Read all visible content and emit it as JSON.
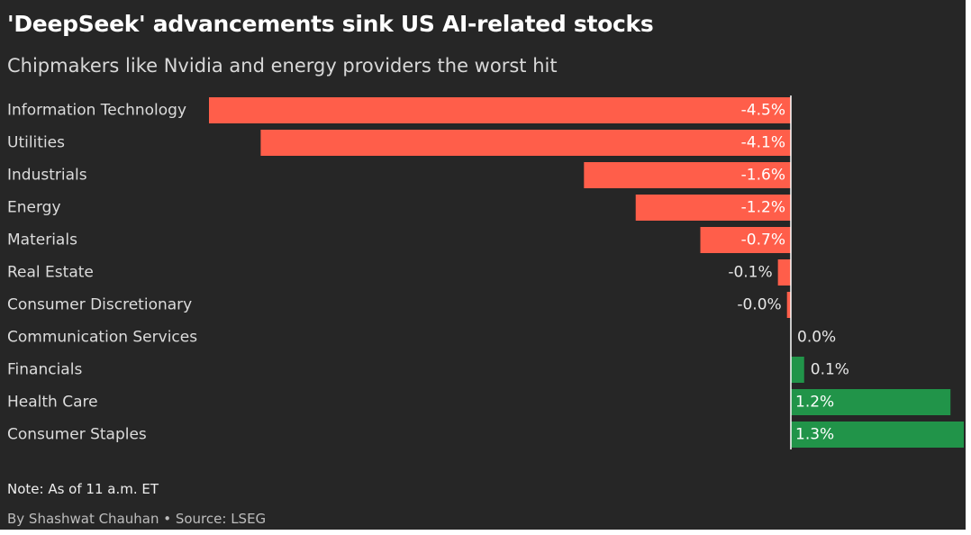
{
  "title": "'DeepSeek' advancements sink US AI-related stocks",
  "subtitle": "Chipmakers like Nvidia and energy providers the worst hit",
  "note": "Note: As of 11 a.m. ET",
  "credit": "By Shashwat Chauhan • Source: LSEG",
  "colors": {
    "background": "#262626",
    "negative": "#ff5e4a",
    "positive": "#219449",
    "axis": "#ffffff",
    "label": "#dcdcdc",
    "value_outside": "#e6e6e6"
  },
  "chart_data": {
    "type": "bar",
    "orientation": "horizontal",
    "title": "'DeepSeek' advancements sink US AI-related stocks",
    "subtitle": "Chipmakers like Nvidia and energy providers the worst hit",
    "categories": [
      "Information Technology",
      "Utilities",
      "Industrials",
      "Energy",
      "Materials",
      "Real Estate",
      "Consumer Discretionary",
      "Communication Services",
      "Financials",
      "Health Care",
      "Consumer Staples"
    ],
    "values": [
      -4.5,
      -4.1,
      -1.6,
      -1.2,
      -0.7,
      -0.1,
      -0.03,
      0.0,
      0.1,
      1.2,
      1.3
    ],
    "value_labels": [
      "-4.5%",
      "-4.1%",
      "-1.6%",
      "-1.2%",
      "-0.7%",
      "-0.1%",
      "-0.0%",
      "0.0%",
      "0.1%",
      "1.2%",
      "1.3%"
    ],
    "unit": "%",
    "xlim": [
      -4.5,
      1.3
    ],
    "grid": false,
    "legend": "none"
  }
}
